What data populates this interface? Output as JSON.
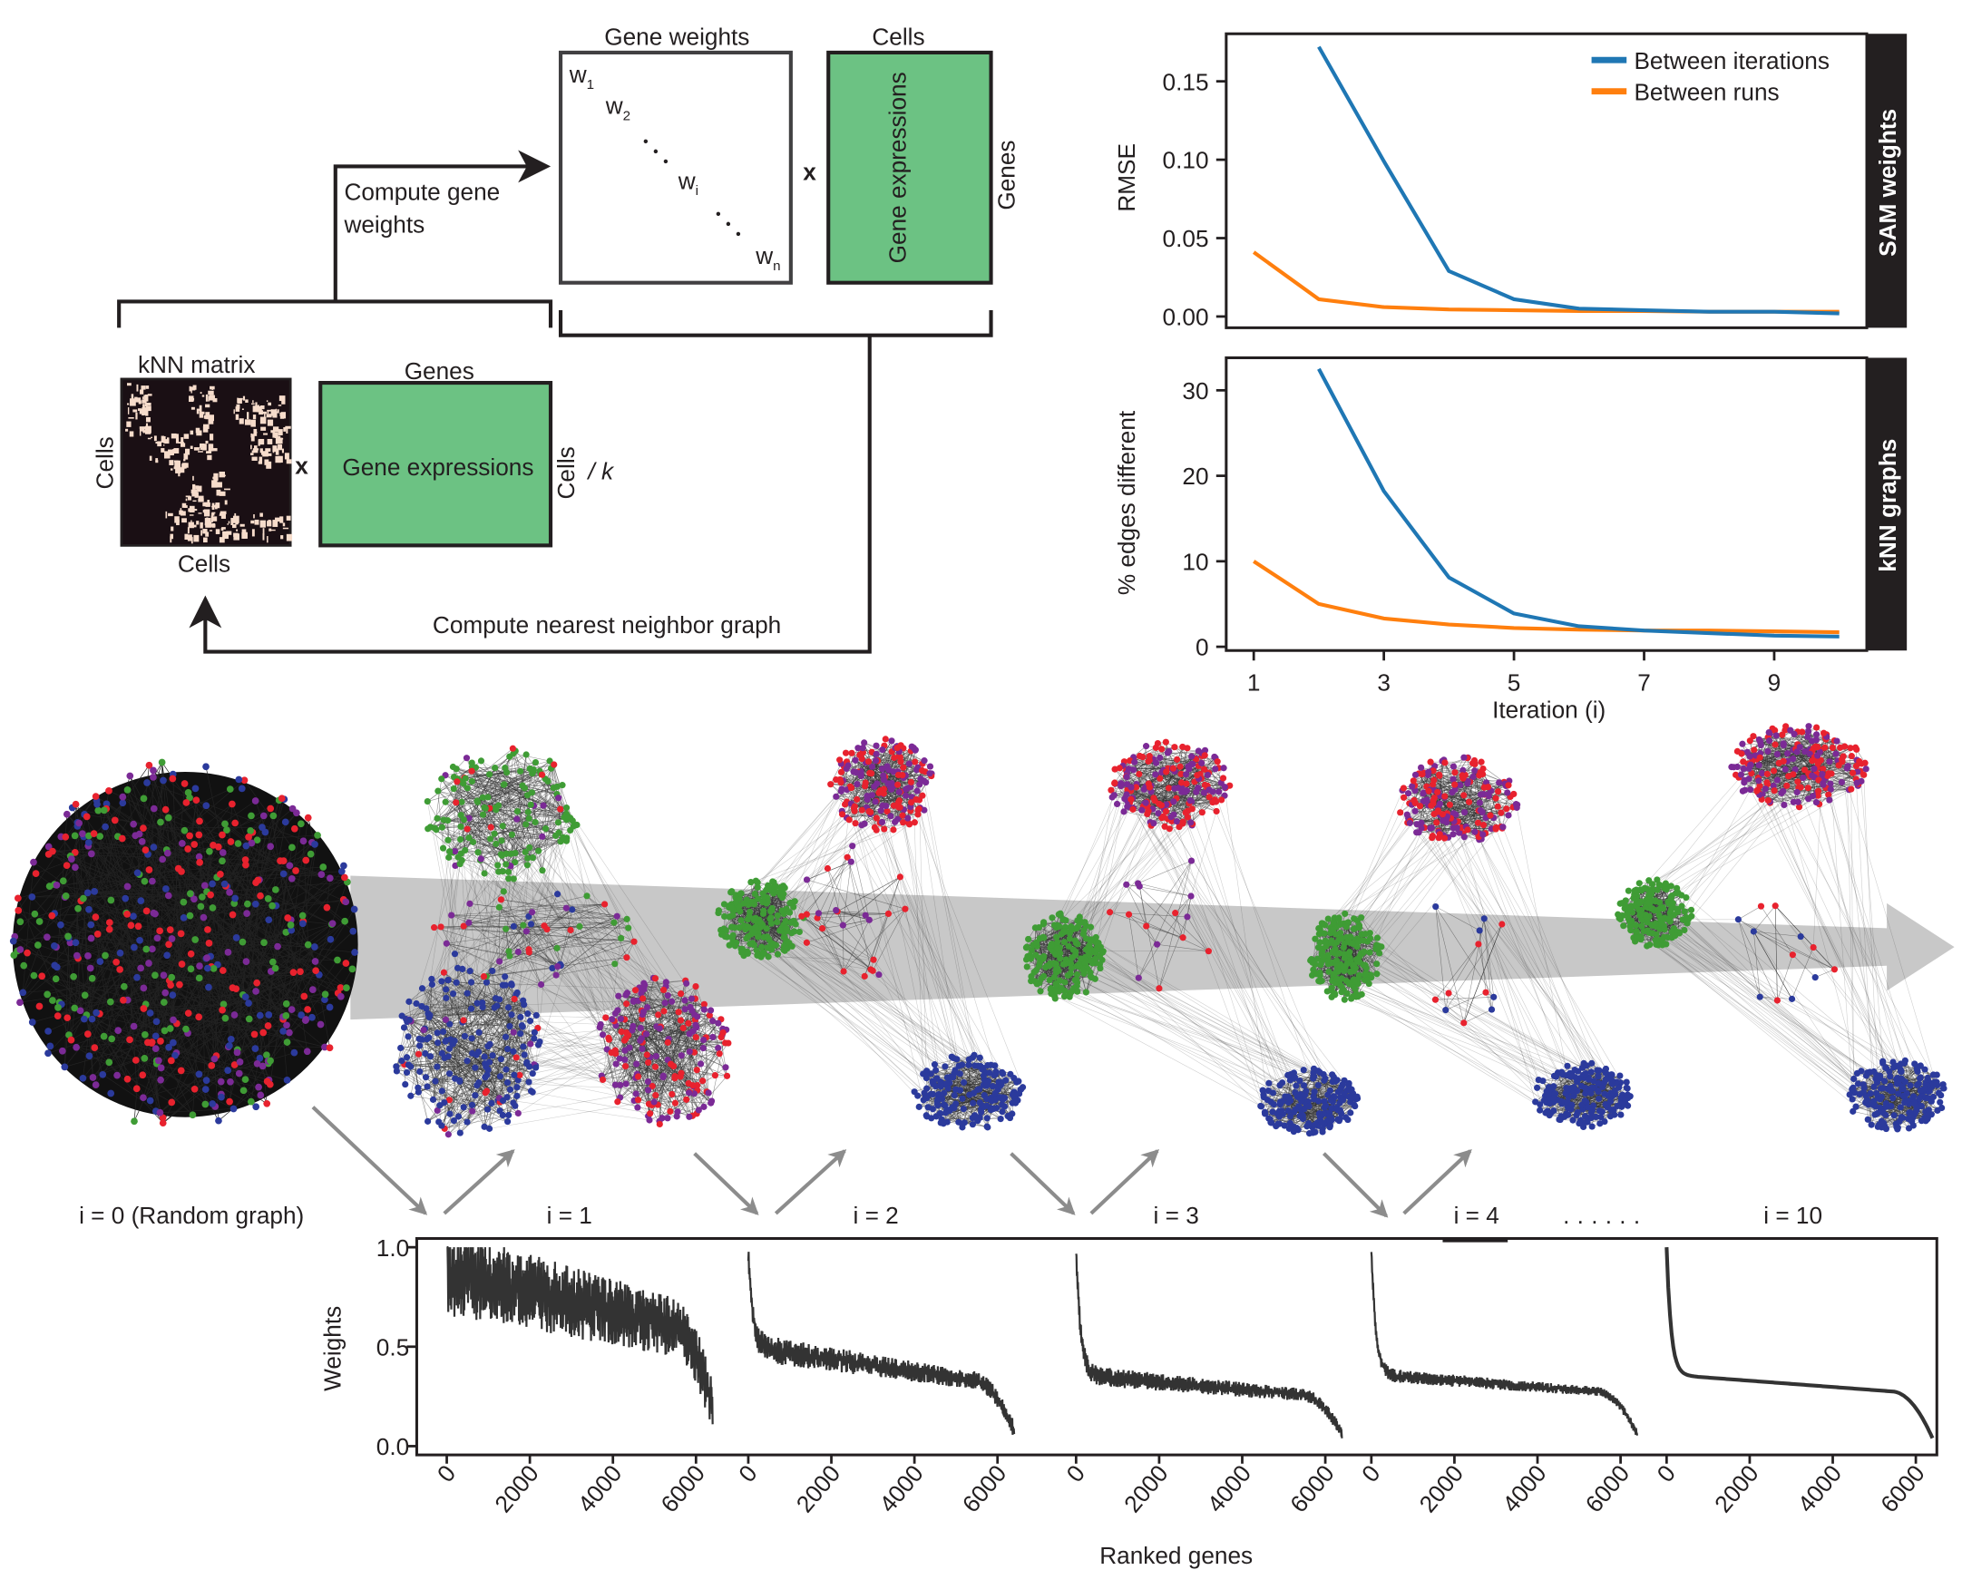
{
  "schematic": {
    "gene_weights_title": "Gene weights",
    "cells_title": "Cells",
    "w1": "w",
    "w1_sub": "1",
    "w2": "w",
    "w2_sub": "2",
    "wi": "w",
    "wi_sub": "i",
    "wn": "w",
    "wn_sub": "n",
    "times": "x",
    "gene_expressions": "Gene expressions",
    "genes_side": "Genes",
    "compute_gene_weights_line1": "Compute gene",
    "compute_gene_weights_line2": "weights",
    "knn_matrix_title": "kNN matrix",
    "knn_cells_left": "Cells",
    "knn_cells_bottom": "Cells",
    "genes_top": "Genes",
    "cells_right": "Cells",
    "divide_k": "/ k",
    "compute_nn_graph": "Compute nearest neighbor graph",
    "colors": {
      "green_box": "#6cc283",
      "knn_bg": "#1a0f14",
      "knn_fg": "#f6dccb"
    }
  },
  "graphs": {
    "labels": [
      "i = 0 (Random graph)",
      "i = 1",
      "i = 2",
      "i = 3",
      "i = 4",
      "......",
      "i = 10"
    ],
    "node_colors": {
      "green": "#3f9c35",
      "blue": "#2b3a9c",
      "purple": "#7b2a96",
      "red": "#e8222e"
    },
    "arrow_color": "#c8c8c8"
  },
  "chart_data": [
    {
      "type": "line",
      "title": "",
      "panel_label": "SAM weights",
      "xlabel": "Iteration (i)",
      "ylabel": "RMSE",
      "xlim": [
        0.5,
        10.3
      ],
      "ylim": [
        -0.006,
        0.18
      ],
      "xticks": [
        "1",
        "3",
        "5",
        "7",
        "9"
      ],
      "yticks": [
        "0.00",
        "0.05",
        "0.10",
        "0.15"
      ],
      "legend_position": "top-right",
      "series": [
        {
          "name": "Between iterations",
          "color": "#1f77b4",
          "x": [
            2,
            3,
            4,
            5,
            6,
            7,
            8,
            9,
            10
          ],
          "values": [
            0.172,
            0.099,
            0.029,
            0.011,
            0.005,
            0.004,
            0.003,
            0.003,
            0.002
          ]
        },
        {
          "name": "Between runs",
          "color": "#ff7f0e",
          "x": [
            1,
            2,
            3,
            4,
            5,
            6,
            7,
            8,
            9,
            10
          ],
          "values": [
            0.041,
            0.011,
            0.006,
            0.0045,
            0.004,
            0.0035,
            0.0035,
            0.003,
            0.003,
            0.003
          ]
        }
      ]
    },
    {
      "type": "line",
      "title": "",
      "panel_label": "kNN graphs",
      "xlabel": "Iteration (i)",
      "ylabel": "% edges different",
      "xlim": [
        0.5,
        10.3
      ],
      "ylim": [
        -0.5,
        34
      ],
      "xticks": [
        "1",
        "3",
        "5",
        "7",
        "9"
      ],
      "yticks": [
        "0",
        "10",
        "20",
        "30"
      ],
      "series": [
        {
          "name": "Between iterations",
          "color": "#1f77b4",
          "x": [
            2,
            3,
            4,
            5,
            6,
            7,
            8,
            9,
            10
          ],
          "values": [
            32.5,
            18.2,
            8.1,
            3.9,
            2.4,
            1.9,
            1.6,
            1.3,
            1.2
          ]
        },
        {
          "name": "Between runs",
          "color": "#ff7f0e",
          "x": [
            1,
            2,
            3,
            4,
            5,
            6,
            7,
            8,
            9,
            10
          ],
          "values": [
            10,
            5,
            3.3,
            2.6,
            2.2,
            2.0,
            1.9,
            1.9,
            1.8,
            1.7
          ]
        }
      ]
    },
    {
      "type": "line",
      "title": "",
      "xlabel": "Ranked genes",
      "ylabel": "Weights",
      "ylim": [
        0,
        1
      ],
      "xlim": [
        0,
        6400
      ],
      "yticks": [
        "0.0",
        "0.5",
        "1.0"
      ],
      "xticks": [
        "0",
        "2000",
        "4000",
        "6000"
      ],
      "panels": [
        "i = 1",
        "i = 2",
        "i = 3",
        "i = 4",
        "i = 10"
      ],
      "color": "#333333"
    }
  ]
}
